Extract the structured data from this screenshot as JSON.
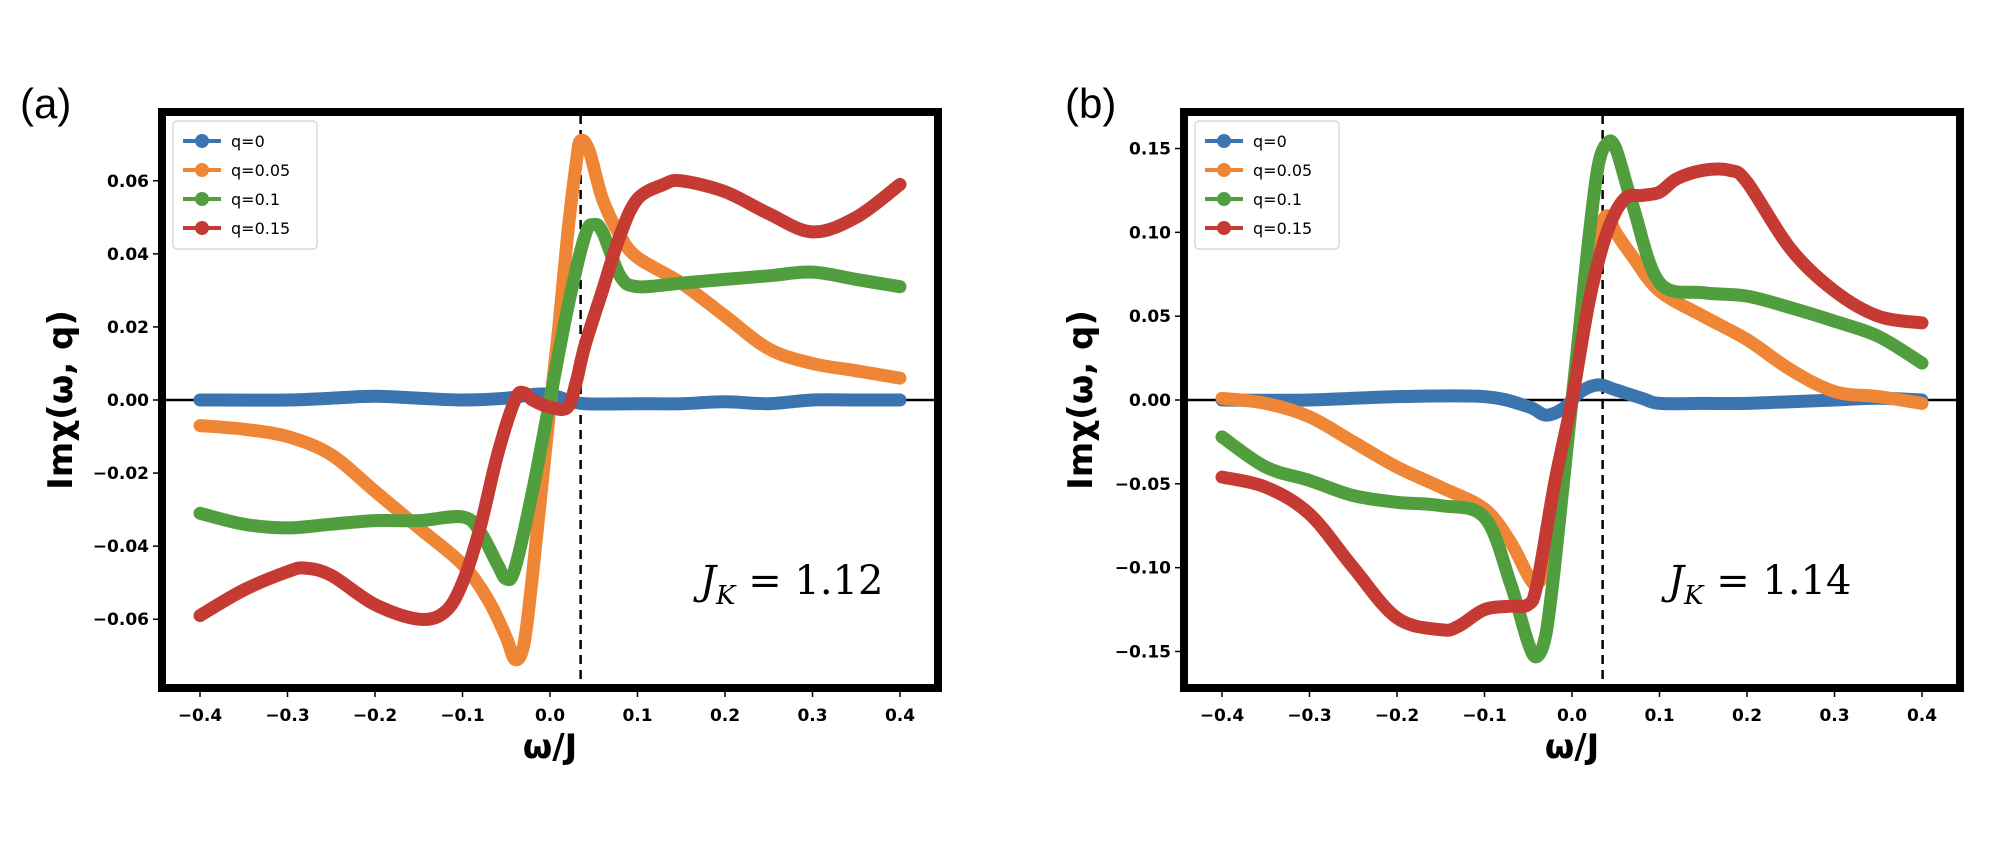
{
  "chart_data": [
    {
      "type": "line",
      "panel_label": "(a)",
      "xlabel": "ω/J",
      "ylabel": "Imχ(ω, q)",
      "xlim": [
        -0.44,
        0.44
      ],
      "ylim": [
        -0.078,
        0.078
      ],
      "xticks": [
        -0.4,
        -0.3,
        -0.2,
        -0.1,
        0.0,
        0.1,
        0.2,
        0.3,
        0.4
      ],
      "xtick_labels": [
        "−0.4",
        "−0.3",
        "−0.2",
        "−0.1",
        "0.0",
        "0.1",
        "0.2",
        "0.3",
        "0.4"
      ],
      "yticks": [
        -0.06,
        -0.04,
        -0.02,
        0.0,
        0.02,
        0.04,
        0.06
      ],
      "ytick_labels": [
        "−0.06",
        "−0.04",
        "−0.02",
        "0.00",
        "0.02",
        "0.04",
        "0.06"
      ],
      "vline_x": 0.035,
      "hline_y": 0.0,
      "legend_position": "top-left",
      "annotation": {
        "symbol": "J",
        "subscript": "K",
        "text": " = 1.12"
      },
      "series": [
        {
          "name": "q=0",
          "color": "#3b75af",
          "x": [
            -0.4,
            -0.3,
            -0.25,
            -0.2,
            -0.15,
            -0.1,
            -0.05,
            -0.02,
            0.0,
            0.02,
            0.04,
            0.1,
            0.15,
            0.2,
            0.25,
            0.3,
            0.35,
            0.4
          ],
          "y": [
            0.0,
            0.0,
            0.0005,
            0.001,
            0.0005,
            0.0,
            0.0005,
            0.0015,
            0.0015,
            0.0,
            -0.001,
            -0.001,
            -0.001,
            -0.0005,
            -0.001,
            0.0,
            0.0,
            0.0
          ]
        },
        {
          "name": "q=0.05",
          "color": "#ef8636",
          "x": [
            -0.4,
            -0.35,
            -0.3,
            -0.25,
            -0.2,
            -0.15,
            -0.1,
            -0.07,
            -0.05,
            -0.04,
            -0.03,
            -0.02,
            -0.01,
            0.0,
            0.01,
            0.02,
            0.03,
            0.035,
            0.045,
            0.06,
            0.08,
            0.1,
            0.15,
            0.2,
            0.25,
            0.3,
            0.35,
            0.4
          ],
          "y": [
            -0.007,
            -0.008,
            -0.01,
            -0.015,
            -0.025,
            -0.035,
            -0.045,
            -0.055,
            -0.065,
            -0.071,
            -0.067,
            -0.048,
            -0.025,
            -0.002,
            0.02,
            0.045,
            0.065,
            0.071,
            0.068,
            0.055,
            0.045,
            0.039,
            0.032,
            0.023,
            0.014,
            0.01,
            0.008,
            0.006
          ]
        },
        {
          "name": "q=0.1",
          "color": "#519e3e",
          "x": [
            -0.4,
            -0.35,
            -0.3,
            -0.25,
            -0.2,
            -0.15,
            -0.1,
            -0.08,
            -0.06,
            -0.05,
            -0.04,
            -0.02,
            0.0,
            0.02,
            0.04,
            0.05,
            0.06,
            0.08,
            0.1,
            0.15,
            0.2,
            0.25,
            0.3,
            0.35,
            0.4
          ],
          "y": [
            -0.031,
            -0.034,
            -0.035,
            -0.034,
            -0.033,
            -0.033,
            -0.032,
            -0.036,
            -0.045,
            -0.049,
            -0.046,
            -0.025,
            0.0,
            0.025,
            0.045,
            0.048,
            0.046,
            0.034,
            0.031,
            0.032,
            0.033,
            0.034,
            0.035,
            0.033,
            0.031
          ]
        },
        {
          "name": "q=0.15",
          "color": "#c53a32",
          "x": [
            -0.4,
            -0.35,
            -0.3,
            -0.28,
            -0.25,
            -0.2,
            -0.15,
            -0.12,
            -0.1,
            -0.08,
            -0.06,
            -0.04,
            -0.03,
            -0.02,
            0.0,
            0.02,
            0.03,
            0.04,
            0.06,
            0.08,
            0.1,
            0.13,
            0.15,
            0.2,
            0.25,
            0.3,
            0.35,
            0.4
          ],
          "y": [
            -0.059,
            -0.052,
            -0.047,
            -0.046,
            -0.048,
            -0.056,
            -0.06,
            -0.058,
            -0.05,
            -0.035,
            -0.015,
            0.0,
            0.002,
            0.0,
            -0.002,
            -0.002,
            0.005,
            0.015,
            0.03,
            0.045,
            0.055,
            0.059,
            0.06,
            0.057,
            0.051,
            0.046,
            0.05,
            0.059
          ]
        }
      ]
    },
    {
      "type": "line",
      "panel_label": "(b)",
      "xlabel": "ω/J",
      "ylabel": "Imχ(ω, q)",
      "xlim": [
        -0.44,
        0.44
      ],
      "ylim": [
        -0.17,
        0.17
      ],
      "xticks": [
        -0.4,
        -0.3,
        -0.2,
        -0.1,
        0.0,
        0.1,
        0.2,
        0.3,
        0.4
      ],
      "xtick_labels": [
        "−0.4",
        "−0.3",
        "−0.2",
        "−0.1",
        "0.0",
        "0.1",
        "0.2",
        "0.3",
        "0.4"
      ],
      "yticks": [
        -0.15,
        -0.1,
        -0.05,
        0.0,
        0.05,
        0.1,
        0.15
      ],
      "ytick_labels": [
        "−0.15",
        "−0.10",
        "−0.05",
        "0.00",
        "0.05",
        "0.10",
        "0.15"
      ],
      "vline_x": 0.035,
      "hline_y": 0.0,
      "legend_position": "top-left",
      "annotation": {
        "symbol": "J",
        "subscript": "K",
        "text": " = 1.14"
      },
      "series": [
        {
          "name": "q=0",
          "color": "#3b75af",
          "x": [
            -0.4,
            -0.3,
            -0.2,
            -0.1,
            -0.05,
            -0.03,
            -0.01,
            0.01,
            0.03,
            0.05,
            0.08,
            0.1,
            0.15,
            0.2,
            0.25,
            0.3,
            0.35,
            0.4
          ],
          "y": [
            0.0,
            0.0,
            0.002,
            0.002,
            -0.004,
            -0.009,
            -0.005,
            0.005,
            0.009,
            0.006,
            0.001,
            -0.002,
            -0.002,
            -0.002,
            -0.001,
            0.0,
            0.001,
            0.0
          ]
        },
        {
          "name": "q=0.05",
          "color": "#ef8636",
          "x": [
            -0.4,
            -0.35,
            -0.3,
            -0.25,
            -0.2,
            -0.15,
            -0.1,
            -0.07,
            -0.05,
            -0.04,
            -0.03,
            -0.02,
            -0.01,
            0.0,
            0.01,
            0.02,
            0.03,
            0.04,
            0.05,
            0.07,
            0.1,
            0.15,
            0.2,
            0.25,
            0.3,
            0.35,
            0.4
          ],
          "y": [
            0.001,
            -0.002,
            -0.01,
            -0.025,
            -0.04,
            -0.052,
            -0.065,
            -0.085,
            -0.105,
            -0.11,
            -0.1,
            -0.08,
            -0.045,
            0.0,
            0.045,
            0.08,
            0.1,
            0.11,
            0.1,
            0.085,
            0.065,
            0.05,
            0.036,
            0.018,
            0.005,
            0.002,
            -0.002
          ]
        },
        {
          "name": "q=0.1",
          "color": "#519e3e",
          "x": [
            -0.4,
            -0.35,
            -0.3,
            -0.25,
            -0.2,
            -0.15,
            -0.1,
            -0.07,
            -0.05,
            -0.04,
            -0.03,
            -0.02,
            -0.01,
            0.0,
            0.01,
            0.02,
            0.03,
            0.04,
            0.05,
            0.07,
            0.1,
            0.15,
            0.2,
            0.25,
            0.3,
            0.35,
            0.4
          ],
          "y": [
            -0.022,
            -0.04,
            -0.048,
            -0.057,
            -0.061,
            -0.063,
            -0.07,
            -0.11,
            -0.145,
            -0.153,
            -0.14,
            -0.1,
            -0.05,
            0.0,
            0.05,
            0.1,
            0.14,
            0.153,
            0.15,
            0.115,
            0.07,
            0.064,
            0.062,
            0.055,
            0.047,
            0.038,
            0.022
          ]
        },
        {
          "name": "q=0.15",
          "color": "#c53a32",
          "x": [
            -0.4,
            -0.35,
            -0.3,
            -0.25,
            -0.2,
            -0.15,
            -0.13,
            -0.1,
            -0.07,
            -0.05,
            -0.04,
            -0.02,
            0.0,
            0.02,
            0.04,
            0.06,
            0.08,
            0.1,
            0.12,
            0.15,
            0.18,
            0.2,
            0.25,
            0.3,
            0.35,
            0.4
          ],
          "y": [
            -0.046,
            -0.052,
            -0.068,
            -0.1,
            -0.13,
            -0.137,
            -0.135,
            -0.125,
            -0.123,
            -0.122,
            -0.11,
            -0.05,
            0.0,
            0.06,
            0.1,
            0.12,
            0.122,
            0.124,
            0.132,
            0.137,
            0.137,
            0.13,
            0.09,
            0.065,
            0.05,
            0.046
          ]
        }
      ]
    }
  ]
}
